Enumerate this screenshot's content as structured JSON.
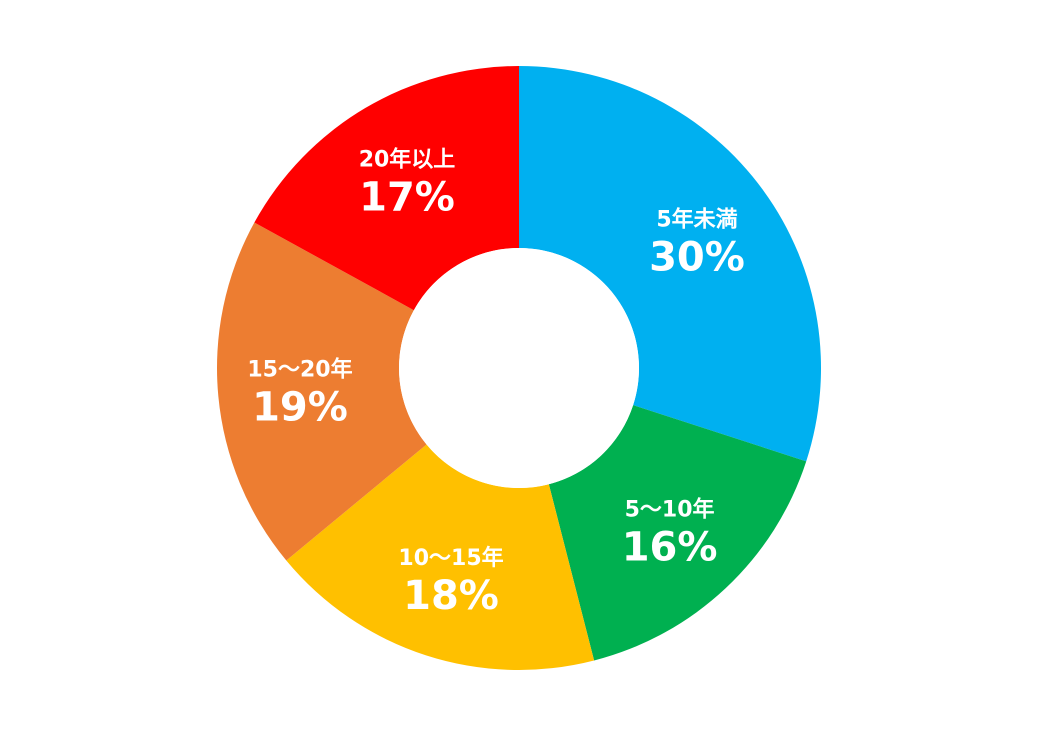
{
  "chart_data": {
    "type": "pie",
    "variant": "donut",
    "title": "",
    "legend": "none",
    "start_angle_deg": 0,
    "direction": "clockwise",
    "slices": [
      {
        "label": "5年未満",
        "value": 30,
        "display": "30%",
        "color": "#00B0F0"
      },
      {
        "label": "5〜10年",
        "value": 16,
        "display": "16%",
        "color": "#00B050"
      },
      {
        "label": "10〜15年",
        "value": 18,
        "display": "18%",
        "color": "#FFC000"
      },
      {
        "label": "15〜20年",
        "value": 19,
        "display": "19%",
        "color": "#ED7D31"
      },
      {
        "label": "20年以上",
        "value": 17,
        "display": "17%",
        "color": "#FF0000"
      }
    ]
  }
}
